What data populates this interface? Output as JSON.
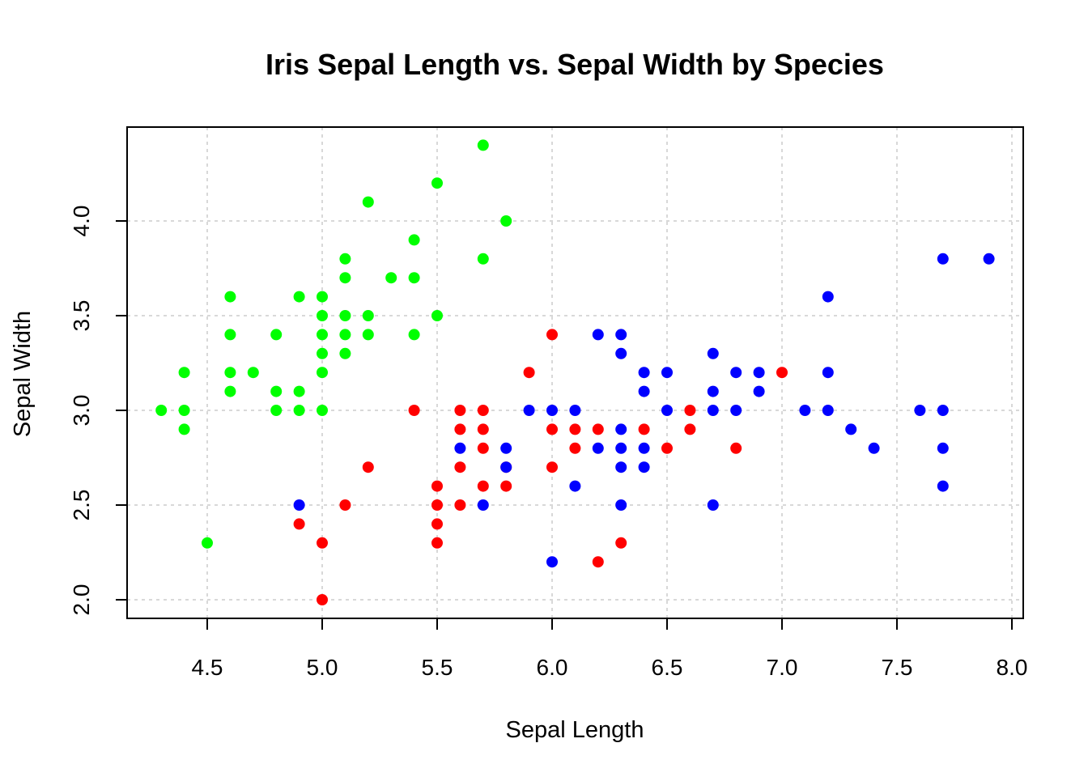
{
  "chart_data": {
    "type": "scatter",
    "title": "Iris Sepal Length vs. Sepal Width by Species",
    "xlabel": "Sepal Length",
    "ylabel": "Sepal Width",
    "xlim": [
      4.2,
      8.05
    ],
    "ylim": [
      1.9,
      4.5
    ],
    "xticks": [
      4.5,
      5.0,
      5.5,
      6.0,
      6.5,
      7.0,
      7.5,
      8.0
    ],
    "yticks": [
      2.0,
      2.5,
      3.0,
      3.5,
      4.0
    ],
    "tick_labels_x": [
      "4.5",
      "5.0",
      "5.5",
      "6.0",
      "6.5",
      "7.0",
      "7.5",
      "8.0"
    ],
    "tick_labels_y": [
      "2.0",
      "2.5",
      "3.0",
      "3.5",
      "4.0"
    ],
    "grid": true,
    "legend": "none",
    "series": [
      {
        "color": "#00ff00",
        "points": [
          [
            4.3,
            3.0
          ],
          [
            4.4,
            3.2
          ],
          [
            4.4,
            3.0
          ],
          [
            4.4,
            2.9
          ],
          [
            4.5,
            2.3
          ],
          [
            4.6,
            3.6
          ],
          [
            4.6,
            3.4
          ],
          [
            4.6,
            3.2
          ],
          [
            4.6,
            3.1
          ],
          [
            4.7,
            3.2
          ],
          [
            4.8,
            3.4
          ],
          [
            4.8,
            3.1
          ],
          [
            4.8,
            3.0
          ],
          [
            4.9,
            3.6
          ],
          [
            4.9,
            3.1
          ],
          [
            4.9,
            3.0
          ],
          [
            5.0,
            3.6
          ],
          [
            5.0,
            3.5
          ],
          [
            5.0,
            3.4
          ],
          [
            5.0,
            3.3
          ],
          [
            5.0,
            3.2
          ],
          [
            5.0,
            3.0
          ],
          [
            5.1,
            3.8
          ],
          [
            5.1,
            3.7
          ],
          [
            5.1,
            3.5
          ],
          [
            5.1,
            3.4
          ],
          [
            5.1,
            3.3
          ],
          [
            5.2,
            4.1
          ],
          [
            5.2,
            3.5
          ],
          [
            5.2,
            3.4
          ],
          [
            5.3,
            3.7
          ],
          [
            5.4,
            3.9
          ],
          [
            5.4,
            3.7
          ],
          [
            5.4,
            3.4
          ],
          [
            5.5,
            4.2
          ],
          [
            5.5,
            3.5
          ],
          [
            5.7,
            4.4
          ],
          [
            5.7,
            3.8
          ],
          [
            5.8,
            4.0
          ]
        ]
      },
      {
        "color": "#ff0000",
        "points": [
          [
            4.9,
            2.4
          ],
          [
            5.0,
            2.3
          ],
          [
            5.0,
            2.0
          ],
          [
            5.1,
            2.5
          ],
          [
            5.2,
            2.7
          ],
          [
            5.4,
            3.0
          ],
          [
            5.5,
            2.6
          ],
          [
            5.5,
            2.5
          ],
          [
            5.5,
            2.4
          ],
          [
            5.5,
            2.3
          ],
          [
            5.6,
            3.0
          ],
          [
            5.6,
            2.9
          ],
          [
            5.6,
            2.7
          ],
          [
            5.6,
            2.5
          ],
          [
            5.7,
            3.0
          ],
          [
            5.7,
            2.9
          ],
          [
            5.7,
            2.8
          ],
          [
            5.7,
            2.6
          ],
          [
            5.8,
            2.7
          ],
          [
            5.8,
            2.6
          ],
          [
            5.9,
            3.2
          ],
          [
            6.0,
            3.4
          ],
          [
            6.0,
            2.9
          ],
          [
            6.0,
            2.7
          ],
          [
            6.1,
            2.9
          ],
          [
            6.1,
            2.8
          ],
          [
            6.2,
            2.9
          ],
          [
            6.2,
            2.2
          ],
          [
            6.3,
            2.3
          ],
          [
            6.4,
            2.9
          ],
          [
            6.5,
            2.8
          ],
          [
            6.6,
            3.0
          ],
          [
            6.6,
            2.9
          ],
          [
            6.8,
            2.8
          ],
          [
            7.0,
            3.2
          ]
        ]
      },
      {
        "color": "#0000ff",
        "points": [
          [
            4.9,
            2.5
          ],
          [
            5.6,
            2.8
          ],
          [
            5.7,
            2.5
          ],
          [
            5.8,
            2.8
          ],
          [
            5.8,
            2.7
          ],
          [
            5.9,
            3.0
          ],
          [
            6.0,
            3.0
          ],
          [
            6.0,
            2.2
          ],
          [
            6.1,
            3.0
          ],
          [
            6.1,
            2.6
          ],
          [
            6.2,
            3.4
          ],
          [
            6.2,
            2.8
          ],
          [
            6.3,
            3.4
          ],
          [
            6.3,
            3.3
          ],
          [
            6.3,
            2.9
          ],
          [
            6.3,
            2.8
          ],
          [
            6.3,
            2.7
          ],
          [
            6.3,
            2.5
          ],
          [
            6.4,
            3.2
          ],
          [
            6.4,
            3.1
          ],
          [
            6.4,
            2.8
          ],
          [
            6.4,
            2.7
          ],
          [
            6.5,
            3.2
          ],
          [
            6.5,
            3.0
          ],
          [
            6.7,
            3.3
          ],
          [
            6.7,
            3.1
          ],
          [
            6.7,
            3.0
          ],
          [
            6.7,
            2.5
          ],
          [
            6.8,
            3.2
          ],
          [
            6.8,
            3.0
          ],
          [
            6.9,
            3.2
          ],
          [
            6.9,
            3.1
          ],
          [
            7.1,
            3.0
          ],
          [
            7.2,
            3.6
          ],
          [
            7.2,
            3.2
          ],
          [
            7.2,
            3.0
          ],
          [
            7.3,
            2.9
          ],
          [
            7.4,
            2.8
          ],
          [
            7.6,
            3.0
          ],
          [
            7.7,
            3.8
          ],
          [
            7.7,
            3.0
          ],
          [
            7.7,
            2.8
          ],
          [
            7.7,
            2.6
          ],
          [
            7.9,
            3.8
          ]
        ]
      }
    ]
  }
}
